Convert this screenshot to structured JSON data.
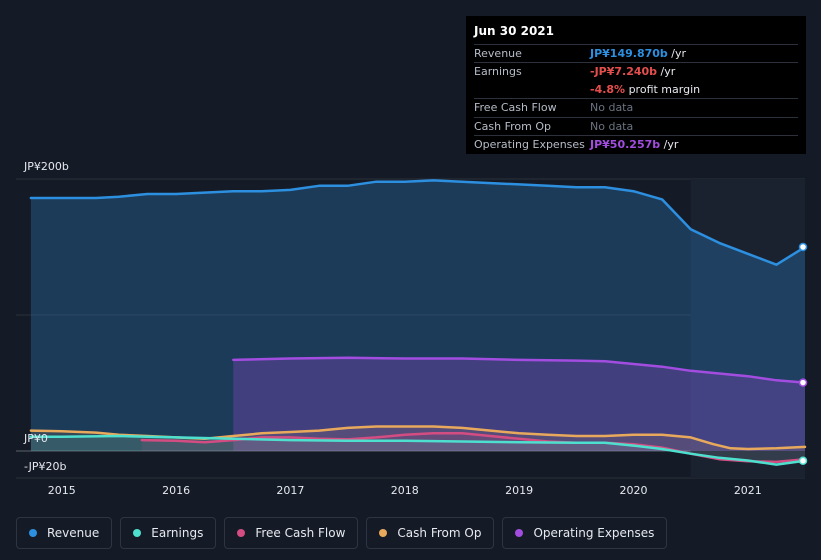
{
  "chart_data": {
    "type": "area",
    "currency_axis": {
      "ticks": [
        {
          "value": 200,
          "label": "JP¥200b"
        },
        {
          "value": 0,
          "label": "JP¥0"
        },
        {
          "value": -20,
          "label": "-JP¥20b"
        }
      ],
      "ylim": [
        -20,
        200
      ]
    },
    "x_ticks": [
      "2015",
      "2016",
      "2017",
      "2018",
      "2019",
      "2020",
      "2021"
    ],
    "xlim": [
      2014.6,
      2021.5
    ],
    "highlight_from": 2020.5,
    "series": [
      {
        "name": "Revenue",
        "color": "#2d8fe0",
        "points": [
          [
            2014.73,
            186
          ],
          [
            2015.0,
            186
          ],
          [
            2015.3,
            186
          ],
          [
            2015.5,
            187
          ],
          [
            2015.75,
            189
          ],
          [
            2016.0,
            189
          ],
          [
            2016.25,
            190
          ],
          [
            2016.5,
            191
          ],
          [
            2016.75,
            191
          ],
          [
            2017.0,
            192
          ],
          [
            2017.25,
            195
          ],
          [
            2017.5,
            195
          ],
          [
            2017.75,
            198
          ],
          [
            2018.0,
            198
          ],
          [
            2018.25,
            199
          ],
          [
            2018.5,
            198
          ],
          [
            2018.75,
            197
          ],
          [
            2019.0,
            196
          ],
          [
            2019.25,
            195
          ],
          [
            2019.5,
            194
          ],
          [
            2019.75,
            194
          ],
          [
            2020.0,
            191
          ],
          [
            2020.25,
            185
          ],
          [
            2020.5,
            163
          ],
          [
            2020.75,
            153
          ],
          [
            2021.0,
            145
          ],
          [
            2021.25,
            137
          ],
          [
            2021.5,
            150
          ]
        ]
      },
      {
        "name": "Operating Expenses",
        "color": "#a24de0",
        "points": [
          [
            2016.5,
            67
          ],
          [
            2017.0,
            68
          ],
          [
            2017.5,
            68.5
          ],
          [
            2018.0,
            68
          ],
          [
            2018.5,
            68
          ],
          [
            2019.0,
            67
          ],
          [
            2019.5,
            66.5
          ],
          [
            2019.75,
            66
          ],
          [
            2020.0,
            64
          ],
          [
            2020.25,
            62
          ],
          [
            2020.5,
            59
          ],
          [
            2020.75,
            57
          ],
          [
            2021.0,
            55
          ],
          [
            2021.25,
            52
          ],
          [
            2021.5,
            50.3
          ]
        ]
      },
      {
        "name": "Cash From Op",
        "color": "#e8a95c",
        "points": [
          [
            2014.73,
            15
          ],
          [
            2015.0,
            14.5
          ],
          [
            2015.3,
            13.5
          ],
          [
            2015.5,
            12
          ],
          [
            2015.75,
            11
          ],
          [
            2016.0,
            10
          ],
          [
            2016.25,
            9
          ],
          [
            2016.5,
            11
          ],
          [
            2016.75,
            13
          ],
          [
            2017.0,
            14
          ],
          [
            2017.25,
            15
          ],
          [
            2017.5,
            17
          ],
          [
            2017.75,
            18
          ],
          [
            2018.0,
            18
          ],
          [
            2018.25,
            18
          ],
          [
            2018.5,
            17
          ],
          [
            2018.75,
            15
          ],
          [
            2019.0,
            13
          ],
          [
            2019.25,
            12
          ],
          [
            2019.5,
            11
          ],
          [
            2019.75,
            11
          ],
          [
            2020.0,
            12
          ],
          [
            2020.25,
            12
          ],
          [
            2020.5,
            10
          ],
          [
            2020.7,
            5
          ],
          [
            2020.85,
            2
          ],
          [
            2021.0,
            1.5
          ],
          [
            2021.25,
            2
          ],
          [
            2021.5,
            3
          ]
        ]
      },
      {
        "name": "Free Cash Flow",
        "color": "#d44d82",
        "points": [
          [
            2015.7,
            8
          ],
          [
            2016.0,
            7.5
          ],
          [
            2016.25,
            6.5
          ],
          [
            2016.5,
            8
          ],
          [
            2016.75,
            10
          ],
          [
            2017.0,
            10
          ],
          [
            2017.25,
            9
          ],
          [
            2017.5,
            8.5
          ],
          [
            2017.75,
            10
          ],
          [
            2018.0,
            12
          ],
          [
            2018.25,
            13
          ],
          [
            2018.5,
            13
          ],
          [
            2018.75,
            11
          ],
          [
            2019.0,
            9
          ],
          [
            2019.25,
            7
          ],
          [
            2019.5,
            6
          ],
          [
            2019.75,
            6
          ],
          [
            2020.0,
            5
          ],
          [
            2020.25,
            2.5
          ],
          [
            2020.5,
            -2
          ],
          [
            2020.75,
            -6
          ],
          [
            2021.0,
            -7.5
          ],
          [
            2021.25,
            -8
          ],
          [
            2021.5,
            -6
          ]
        ]
      },
      {
        "name": "Earnings",
        "color": "#4de0cf",
        "points": [
          [
            2014.73,
            10.5
          ],
          [
            2015.0,
            10.5
          ],
          [
            2015.5,
            11
          ],
          [
            2016.0,
            10
          ],
          [
            2016.5,
            9
          ],
          [
            2017.0,
            8
          ],
          [
            2017.5,
            7.5
          ],
          [
            2018.0,
            7.5
          ],
          [
            2018.5,
            7
          ],
          [
            2019.0,
            6.5
          ],
          [
            2019.5,
            6
          ],
          [
            2019.75,
            6
          ],
          [
            2020.0,
            4
          ],
          [
            2020.25,
            1.5
          ],
          [
            2020.5,
            -2
          ],
          [
            2020.75,
            -5
          ],
          [
            2021.0,
            -7
          ],
          [
            2021.25,
            -10
          ],
          [
            2021.5,
            -7.2
          ]
        ]
      }
    ]
  },
  "tooltip": {
    "date": "Jun 30 2021",
    "rows": [
      {
        "label": "Revenue",
        "value": "JP¥149.870b",
        "suffix": " /yr",
        "color": "#2d8fe0"
      },
      {
        "label": "Earnings",
        "value": "-JP¥7.240b",
        "suffix": " /yr",
        "color": "#e64e4e"
      },
      {
        "label": "",
        "value": "-4.8%",
        "suffix": " profit margin",
        "color": "#e64e4e"
      },
      {
        "label": "Free Cash Flow",
        "value": "No data",
        "suffix": "",
        "color": ""
      },
      {
        "label": "Cash From Op",
        "value": "No data",
        "suffix": "",
        "color": ""
      },
      {
        "label": "Operating Expenses",
        "value": "JP¥50.257b",
        "suffix": " /yr",
        "color": "#a24de0"
      }
    ]
  },
  "legend": [
    {
      "label": "Revenue",
      "color": "#2d8fe0"
    },
    {
      "label": "Earnings",
      "color": "#4de0cf"
    },
    {
      "label": "Free Cash Flow",
      "color": "#d44d82"
    },
    {
      "label": "Cash From Op",
      "color": "#e8a95c"
    },
    {
      "label": "Operating Expenses",
      "color": "#a24de0"
    }
  ]
}
